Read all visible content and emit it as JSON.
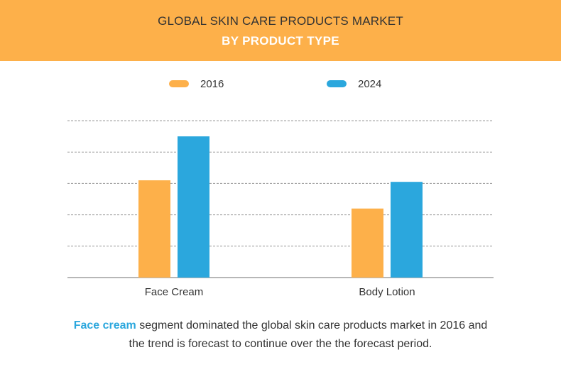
{
  "header": {
    "title_line1": "GLOBAL SKIN CARE PRODUCTS MARKET",
    "title_line2": "BY PRODUCT TYPE"
  },
  "legend": {
    "items": [
      {
        "label": "2016",
        "color": "#fdb04a"
      },
      {
        "label": "2024",
        "color": "#2ba7dd"
      }
    ]
  },
  "chart_data": {
    "type": "bar",
    "categories": [
      "Face Cream",
      "Body Lotion"
    ],
    "series": [
      {
        "name": "2016",
        "color": "#fdb04a",
        "values": [
          3.1,
          2.2
        ]
      },
      {
        "name": "2024",
        "color": "#2ba7dd",
        "values": [
          4.5,
          3.05
        ]
      }
    ],
    "ylim": [
      0,
      5
    ],
    "grid": true,
    "legend_position": "top"
  },
  "footer": {
    "highlight": "Face cream",
    "line1_rest": " segment dominated the global skin care products market in 2016 and",
    "line2": "the trend is forecast to continue over the the forecast period."
  }
}
